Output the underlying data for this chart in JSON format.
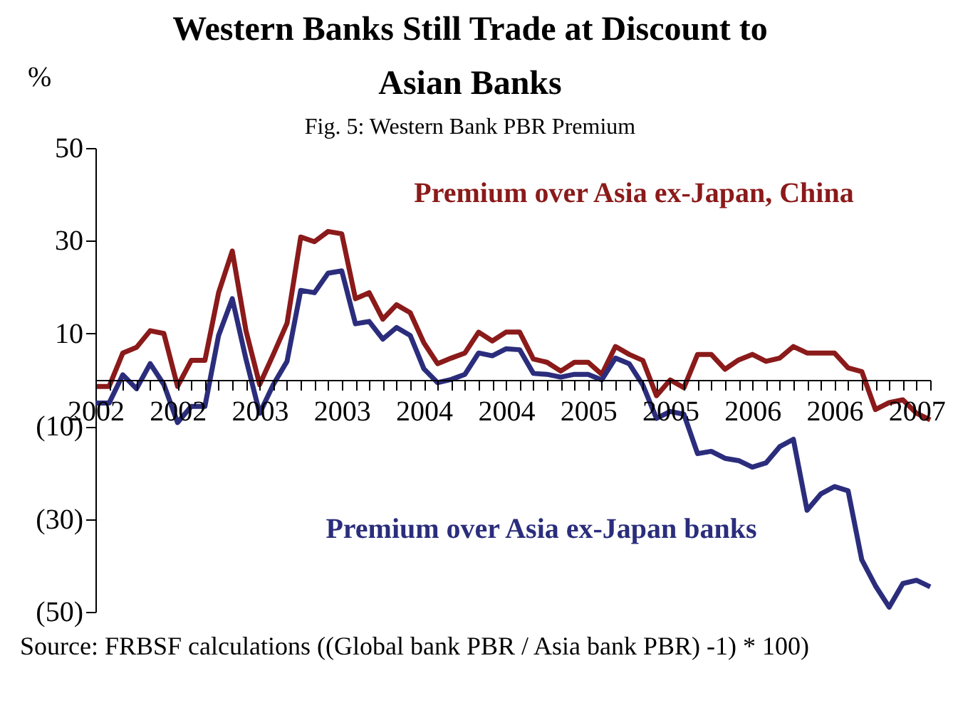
{
  "chart_data": {
    "type": "line",
    "title": "Western Banks Still Trade at Discount to Asian Banks",
    "subtitle": "Fig. 5: Western Bank PBR Premium",
    "ylabel": "%",
    "categories": [
      "2002",
      null,
      null,
      null,
      null,
      null,
      "2002",
      null,
      null,
      null,
      null,
      null,
      "2003",
      null,
      null,
      null,
      null,
      null,
      "2003",
      null,
      null,
      null,
      null,
      null,
      "2004",
      null,
      null,
      null,
      null,
      null,
      "2004",
      null,
      null,
      null,
      null,
      null,
      "2005",
      null,
      null,
      null,
      null,
      null,
      "2005",
      null,
      null,
      null,
      null,
      null,
      "2006",
      null,
      null,
      null,
      null,
      null,
      "2006",
      null,
      null,
      null,
      null,
      null,
      "2007",
      null
    ],
    "series": [
      {
        "name": "Premium over Asia ex-Japan, China",
        "color": "#8b1a1a",
        "values": [
          -1.4,
          -1.4,
          5.8,
          7,
          10.6,
          10,
          -1.4,
          4.2,
          4.2,
          18.8,
          27.8,
          10.6,
          -1,
          5.5,
          12.2,
          30.8,
          29.8,
          32,
          31.5,
          17.5,
          18.8,
          13.1,
          16.2,
          14.5,
          8,
          3.5,
          4.7,
          5.8,
          10.3,
          8.4,
          10.3,
          10.3,
          4.5,
          3.8,
          1.9,
          3.8,
          3.8,
          1.2,
          7.2,
          5.5,
          4.2,
          -3.4,
          0,
          -1.7,
          5.5,
          5.5,
          2.3,
          4.3,
          5.5,
          4,
          4.7,
          7.2,
          5.8,
          5.8,
          5.8,
          2.6,
          1.8,
          -6.4,
          -4.9,
          -4.3,
          -7.2,
          -8.6
        ]
      },
      {
        "name": "Premium over Asia ex-Japan banks",
        "color": "#2b2d7c",
        "values": [
          -5,
          -5,
          1.1,
          -1.9,
          3.5,
          -1,
          -9.2,
          -5.7,
          -5.7,
          9.6,
          17.5,
          4.5,
          -7.2,
          -1,
          4,
          19.3,
          18.8,
          23,
          23.5,
          12.1,
          12.6,
          8.8,
          11.3,
          9.6,
          2.4,
          -0.6,
          0.1,
          1.2,
          5.8,
          5.2,
          6.7,
          6.5,
          1.4,
          1.2,
          0.6,
          1.2,
          1.2,
          0,
          4.7,
          3.5,
          -1.1,
          -8.3,
          -6.8,
          -7.4,
          -15.9,
          -15.4,
          -16.9,
          -17.4,
          -18.8,
          -17.9,
          -14.4,
          -12.8,
          -28.1,
          -24.6,
          -23,
          -23.9,
          -38.8,
          -44.4,
          -49,
          -43.9,
          -43.2,
          -44.6
        ]
      }
    ],
    "ylim": [
      -50,
      50
    ],
    "yticks": [
      50,
      30,
      10,
      {
        "value": -10,
        "label": "(10)"
      },
      {
        "value": -30,
        "label": "(30)"
      },
      {
        "value": -50,
        "label": "(50)"
      }
    ],
    "grid": false,
    "legend": false,
    "marker": "none",
    "line_style": "solid",
    "annotations": [
      "Source: FRBSF calculations ((Global bank PBR / Asia bank PBR) -1) * 100)"
    ]
  }
}
